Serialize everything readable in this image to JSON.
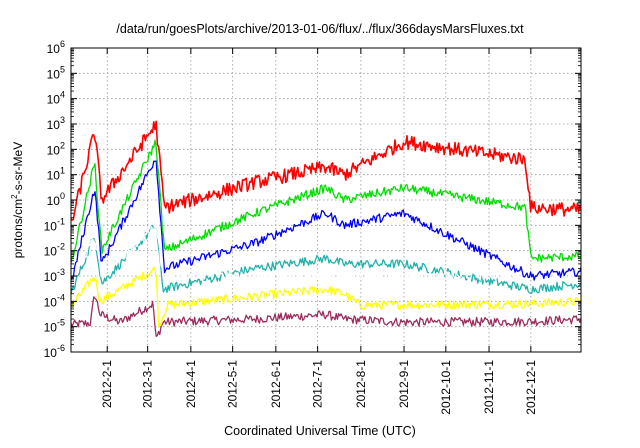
{
  "title": "/data/run/goesPlots/archive/2013-01-06/flux/../flux/366daysMarsFluxes.txt",
  "xlabel": "Coordinated Universal Time (UTC)",
  "ylabel_parts": [
    "protons/cm",
    "2",
    "-s-sr-MeV"
  ],
  "chart_data": {
    "type": "line",
    "title": "/data/run/goesPlots/archive/2013-01-06/flux/../flux/366daysMarsFluxes.txt",
    "xlabel": "Coordinated Universal Time (UTC)",
    "ylabel": "protons/cm2-s-sr-MeV",
    "y_scale": "log",
    "ylim": [
      1e-06,
      1000000.0
    ],
    "xlim": [
      "2012-01-06",
      "2013-01-06"
    ],
    "grid": true,
    "legend": "none",
    "y_ticks": [
      {
        "value": 1e-06,
        "base": "10",
        "exp": "-6"
      },
      {
        "value": 1e-05,
        "base": "10",
        "exp": "-5"
      },
      {
        "value": 0.0001,
        "base": "10",
        "exp": "-4"
      },
      {
        "value": 0.001,
        "base": "10",
        "exp": "-3"
      },
      {
        "value": 0.01,
        "base": "10",
        "exp": "-2"
      },
      {
        "value": 0.1,
        "base": "10",
        "exp": "-1"
      },
      {
        "value": 1,
        "base": "10",
        "exp": "0"
      },
      {
        "value": 10,
        "base": "10",
        "exp": "1"
      },
      {
        "value": 100,
        "base": "10",
        "exp": "2"
      },
      {
        "value": 1000,
        "base": "10",
        "exp": "3"
      },
      {
        "value": 10000,
        "base": "10",
        "exp": "4"
      },
      {
        "value": 100000,
        "base": "10",
        "exp": "5"
      },
      {
        "value": 1000000,
        "base": "10",
        "exp": "6"
      }
    ],
    "x_ticks": [
      {
        "date": "2012-02-01",
        "label": "2012-2-1"
      },
      {
        "date": "2012-03-01",
        "label": "2012-3-1"
      },
      {
        "date": "2012-04-01",
        "label": "2012-4-1"
      },
      {
        "date": "2012-05-01",
        "label": "2012-5-1"
      },
      {
        "date": "2012-06-01",
        "label": "2012-6-1"
      },
      {
        "date": "2012-07-01",
        "label": "2012-7-1"
      },
      {
        "date": "2012-08-01",
        "label": "2012-8-1"
      },
      {
        "date": "2012-09-01",
        "label": "2012-9-1"
      },
      {
        "date": "2012-10-01",
        "label": "2012-10-1"
      },
      {
        "date": "2012-11-01",
        "label": "2012-11-1"
      },
      {
        "date": "2012-12-01",
        "label": "2012-12-1"
      }
    ],
    "series": [
      {
        "color": "#9b2d5e",
        "values": [
          [
            "2012-01-06",
            1.2e-05
          ],
          [
            "2012-01-20",
            1.4e-05
          ],
          [
            "2012-01-23",
            0.0002
          ],
          [
            "2012-01-27",
            3e-05
          ],
          [
            "2012-02-10",
            1.5e-05
          ],
          [
            "2012-03-05",
            8e-05
          ],
          [
            "2012-03-07",
            3e-06
          ],
          [
            "2012-03-12",
            1.5e-05
          ],
          [
            "2012-05-17",
            2e-05
          ],
          [
            "2012-07-07",
            3e-05
          ],
          [
            "2012-07-20",
            2e-05
          ],
          [
            "2012-09-01",
            1.5e-05
          ],
          [
            "2012-12-01",
            1.6e-05
          ],
          [
            "2013-01-06",
            2e-05
          ]
        ]
      },
      {
        "color": "#ffff00",
        "values": [
          [
            "2012-01-06",
            6e-05
          ],
          [
            "2012-01-23",
            0.001
          ],
          [
            "2012-01-27",
            0.0001
          ],
          [
            "2012-03-07",
            0.002
          ],
          [
            "2012-03-09",
            1e-05
          ],
          [
            "2012-03-15",
            7e-05
          ],
          [
            "2012-07-07",
            0.0003
          ],
          [
            "2012-07-20",
            0.0002
          ],
          [
            "2012-08-01",
            7e-05
          ],
          [
            "2012-12-01",
            8e-05
          ],
          [
            "2013-01-06",
            0.0001
          ]
        ]
      },
      {
        "color": "#20b2aa",
        "values": [
          [
            "2012-01-06",
            0.0002
          ],
          [
            "2012-01-23",
            0.04
          ],
          [
            "2012-01-28",
            0.0005
          ],
          [
            "2012-03-07",
            0.1
          ],
          [
            "2012-03-12",
            0.0003
          ],
          [
            "2012-05-17",
            0.002
          ],
          [
            "2012-07-07",
            0.005
          ],
          [
            "2012-07-20",
            0.003
          ],
          [
            "2012-09-01",
            0.003
          ],
          [
            "2012-12-01",
            0.0003
          ],
          [
            "2013-01-06",
            0.0005
          ]
        ]
      },
      {
        "color": "#ffffff",
        "values": [
          [
            "2012-01-06",
            0.0008
          ],
          [
            "2012-01-23",
            0.03
          ],
          [
            "2012-01-28",
            0.001
          ],
          [
            "2012-03-07",
            0.1
          ],
          [
            "2012-03-12",
            0.001
          ],
          [
            "2012-12-01",
            0.001
          ],
          [
            "2013-01-06",
            0.0012
          ]
        ]
      },
      {
        "color": "#0000ff",
        "values": [
          [
            "2012-01-06",
            0.0005
          ],
          [
            "2012-01-23",
            3
          ],
          [
            "2012-01-28",
            0.003
          ],
          [
            "2012-03-07",
            50
          ],
          [
            "2012-03-13",
            0.002
          ],
          [
            "2012-05-17",
            0.02
          ],
          [
            "2012-07-07",
            0.3
          ],
          [
            "2012-07-20",
            0.1
          ],
          [
            "2012-09-01",
            0.3
          ],
          [
            "2012-12-01",
            0.001
          ],
          [
            "2013-01-06",
            0.0015
          ]
        ]
      },
      {
        "color": "#00dd00",
        "values": [
          [
            "2012-01-06",
            0.003
          ],
          [
            "2012-01-23",
            30
          ],
          [
            "2012-01-28",
            0.01
          ],
          [
            "2012-03-07",
            200
          ],
          [
            "2012-03-13",
            0.01
          ],
          [
            "2012-05-17",
            0.3
          ],
          [
            "2012-07-07",
            3
          ],
          [
            "2012-07-20",
            1
          ],
          [
            "2012-09-01",
            3
          ],
          [
            "2012-11-27",
            0.5
          ],
          [
            "2012-12-01",
            0.005
          ],
          [
            "2013-01-06",
            0.006
          ]
        ]
      },
      {
        "color": "#ff0000",
        "values": [
          [
            "2012-01-06",
            0.1
          ],
          [
            "2012-01-23",
            500
          ],
          [
            "2012-01-28",
            1
          ],
          [
            "2012-03-07",
            1000
          ],
          [
            "2012-03-13",
            0.5
          ],
          [
            "2012-05-17",
            5
          ],
          [
            "2012-07-07",
            20
          ],
          [
            "2012-07-20",
            10
          ],
          [
            "2012-09-01",
            200
          ],
          [
            "2012-11-27",
            40
          ],
          [
            "2012-12-01",
            0.5
          ],
          [
            "2013-01-06",
            0.4
          ]
        ]
      }
    ]
  }
}
